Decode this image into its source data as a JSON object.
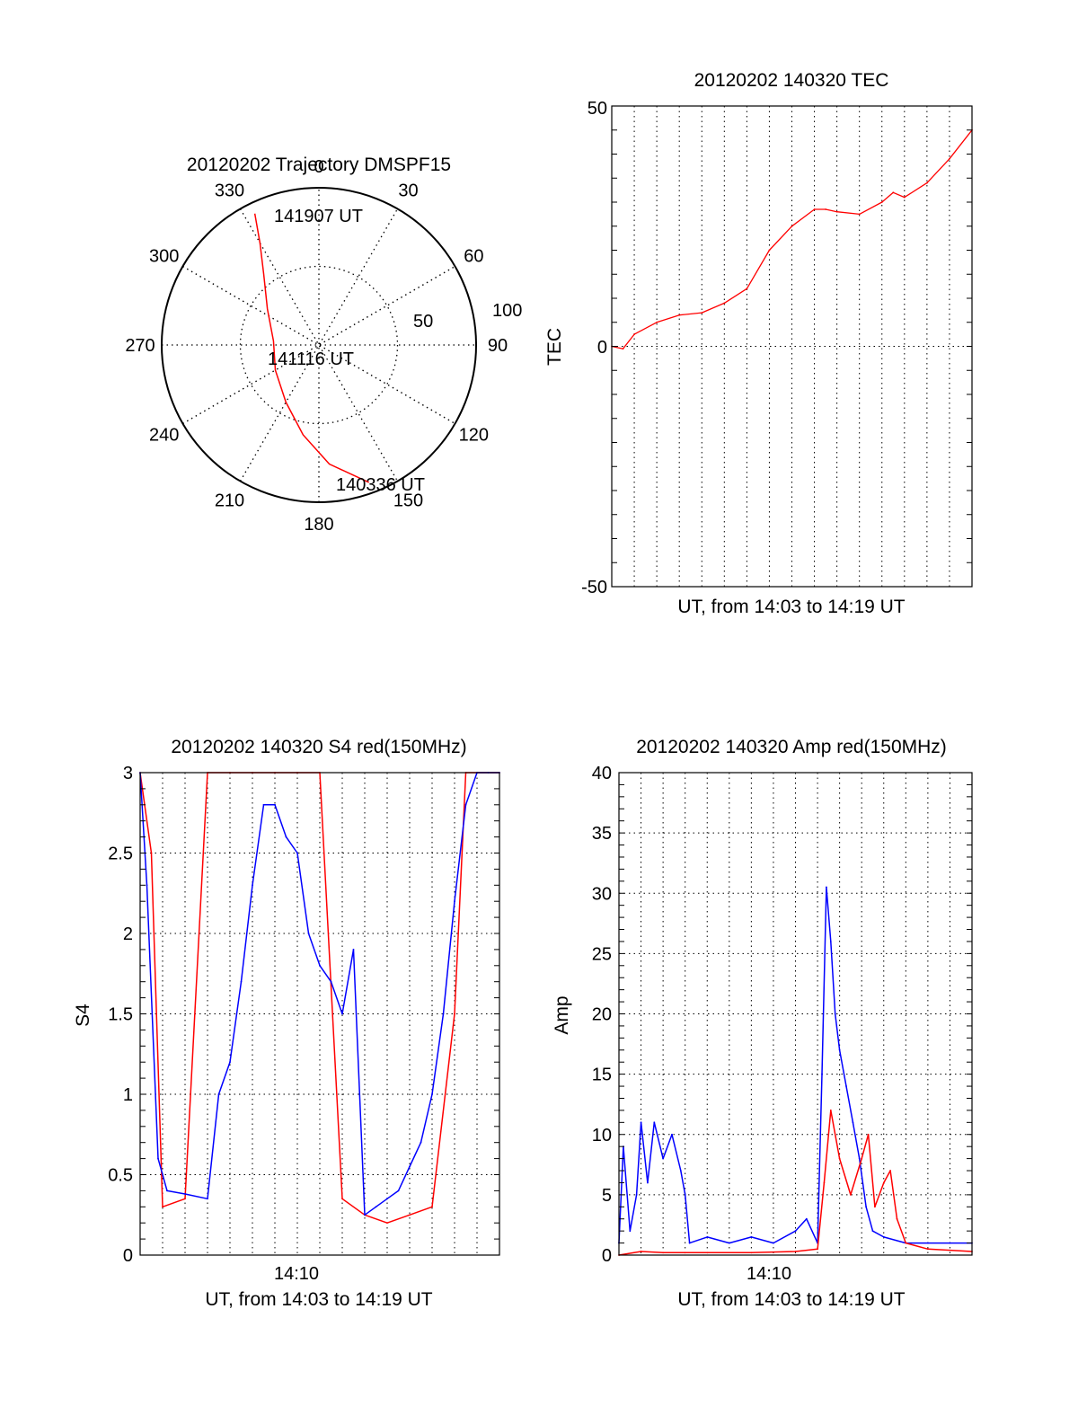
{
  "colors": {
    "red": "#ff0000",
    "blue": "#0000ff",
    "axis": "#000000",
    "grid": "#000000"
  },
  "chart_data": [
    {
      "id": "trajectory",
      "type": "scatter",
      "coordinate_system": "polar",
      "title": "20120202 Trajectory DMSPF15",
      "azimuth_labels": [
        "0",
        "30",
        "60",
        "90",
        "120",
        "150",
        "180",
        "210",
        "240",
        "270",
        "300",
        "330"
      ],
      "radial_labels": [
        "50",
        "100"
      ],
      "annotations": [
        "141907 UT",
        "141116 UT",
        "140336 UT"
      ],
      "radial_max": 100,
      "grid": true,
      "series": [
        {
          "color": "#ff0000",
          "points": [
            {
              "az": 160,
              "r": 93
            },
            {
              "az": 175,
              "r": 76
            },
            {
              "az": 190,
              "r": 58
            },
            {
              "az": 210,
              "r": 42
            },
            {
              "az": 240,
              "r": 32
            },
            {
              "az": 275,
              "r": 29
            },
            {
              "az": 305,
              "r": 40
            },
            {
              "az": 322,
              "r": 57
            },
            {
              "az": 330,
              "r": 75
            },
            {
              "az": 334,
              "r": 93
            }
          ]
        }
      ]
    },
    {
      "id": "tec",
      "type": "line",
      "title": "20120202 140320 TEC",
      "xlabel": "UT, from 14:03 to 14:19 UT",
      "ylabel": "TEC",
      "xlim": [
        0,
        16
      ],
      "ylim": [
        -50,
        50
      ],
      "yticks": [
        "50",
        "0",
        "-50"
      ],
      "grid": true,
      "series": [
        {
          "color": "#ff0000",
          "x": [
            0,
            0.5,
            1,
            2,
            3,
            4,
            5,
            6,
            7,
            8,
            9,
            9.5,
            10,
            11,
            12,
            12.5,
            13,
            14,
            15,
            16
          ],
          "y": [
            0,
            -0.5,
            2.5,
            5,
            6.5,
            7,
            9,
            12,
            20,
            25,
            28.5,
            28.5,
            28,
            27.5,
            30,
            32,
            31,
            34,
            39,
            45
          ]
        }
      ]
    },
    {
      "id": "s4",
      "type": "line",
      "title": "20120202 140320 S4 red(150MHz)",
      "xlabel": "UT, from 14:03 to 14:19 UT",
      "ylabel": "S4",
      "xlim": [
        0,
        16
      ],
      "ylim": [
        0,
        3
      ],
      "xticks": [
        "14:10"
      ],
      "yticks": [
        "0",
        "0.5",
        "1",
        "1.5",
        "2",
        "2.5",
        "3"
      ],
      "grid": true,
      "series": [
        {
          "color": "#ff0000",
          "x": [
            0,
            0.5,
            1,
            2,
            3,
            4,
            5,
            6,
            7,
            8,
            9,
            10,
            11,
            12,
            13,
            14,
            14.5,
            15,
            16
          ],
          "y": [
            3,
            2.5,
            0.3,
            0.35,
            3,
            3,
            3,
            3,
            3,
            3,
            0.35,
            0.25,
            0.2,
            0.25,
            0.3,
            1.5,
            3,
            3,
            3
          ]
        },
        {
          "color": "#0000ff",
          "x": [
            0,
            0.3,
            0.8,
            1.2,
            2,
            3,
            3.5,
            4,
            4.5,
            5,
            5.5,
            6,
            6.5,
            7,
            7.5,
            8,
            8.5,
            9,
            9.5,
            10,
            10.5,
            11,
            11.5,
            12,
            12.5,
            13,
            13.5,
            14,
            14.5,
            15,
            15.5,
            16
          ],
          "y": [
            3,
            2.3,
            0.6,
            0.4,
            0.38,
            0.35,
            1.0,
            1.2,
            1.7,
            2.3,
            2.8,
            2.8,
            2.6,
            2.5,
            2.0,
            1.8,
            1.7,
            1.5,
            1.9,
            0.25,
            0.3,
            0.35,
            0.4,
            0.55,
            0.7,
            1.0,
            1.5,
            2.2,
            2.8,
            3,
            3,
            3
          ]
        }
      ]
    },
    {
      "id": "amp",
      "type": "line",
      "title": "20120202 140320 Amp red(150MHz)",
      "xlabel": "UT, from 14:03 to 14:19 UT",
      "ylabel": "Amp",
      "xlim": [
        0,
        16
      ],
      "ylim": [
        0,
        40
      ],
      "xticks": [
        "14:10"
      ],
      "yticks": [
        "0",
        "5",
        "10",
        "15",
        "20",
        "25",
        "30",
        "35",
        "40"
      ],
      "grid": true,
      "series": [
        {
          "color": "#0000ff",
          "x": [
            0,
            0.2,
            0.5,
            0.8,
            1.0,
            1.3,
            1.6,
            2.0,
            2.4,
            2.8,
            3.0,
            3.2,
            4,
            5,
            6,
            7,
            8,
            8.5,
            9.0,
            9.2,
            9.4,
            9.6,
            9.8,
            10.0,
            10.3,
            10.6,
            10.9,
            11.2,
            11.5,
            12,
            13,
            14,
            15,
            16
          ],
          "y": [
            1,
            9,
            2,
            5,
            11,
            6,
            11,
            8,
            10,
            7,
            5,
            1,
            1.5,
            1,
            1.5,
            1,
            2,
            3,
            1,
            15,
            30.5,
            26,
            20,
            17,
            14,
            11,
            8,
            4,
            2,
            1.5,
            1,
            1,
            1,
            1
          ]
        },
        {
          "color": "#ff0000",
          "x": [
            0,
            1,
            2,
            3,
            4,
            6,
            8,
            9.0,
            9.3,
            9.6,
            10,
            10.5,
            11,
            11.3,
            11.6,
            12,
            12.3,
            12.6,
            13,
            14,
            16
          ],
          "y": [
            0,
            0.3,
            0.2,
            0.2,
            0.2,
            0.2,
            0.3,
            0.5,
            6,
            12,
            8,
            5,
            8,
            10,
            4,
            6,
            7,
            3,
            1,
            0.5,
            0.3
          ]
        }
      ]
    }
  ]
}
